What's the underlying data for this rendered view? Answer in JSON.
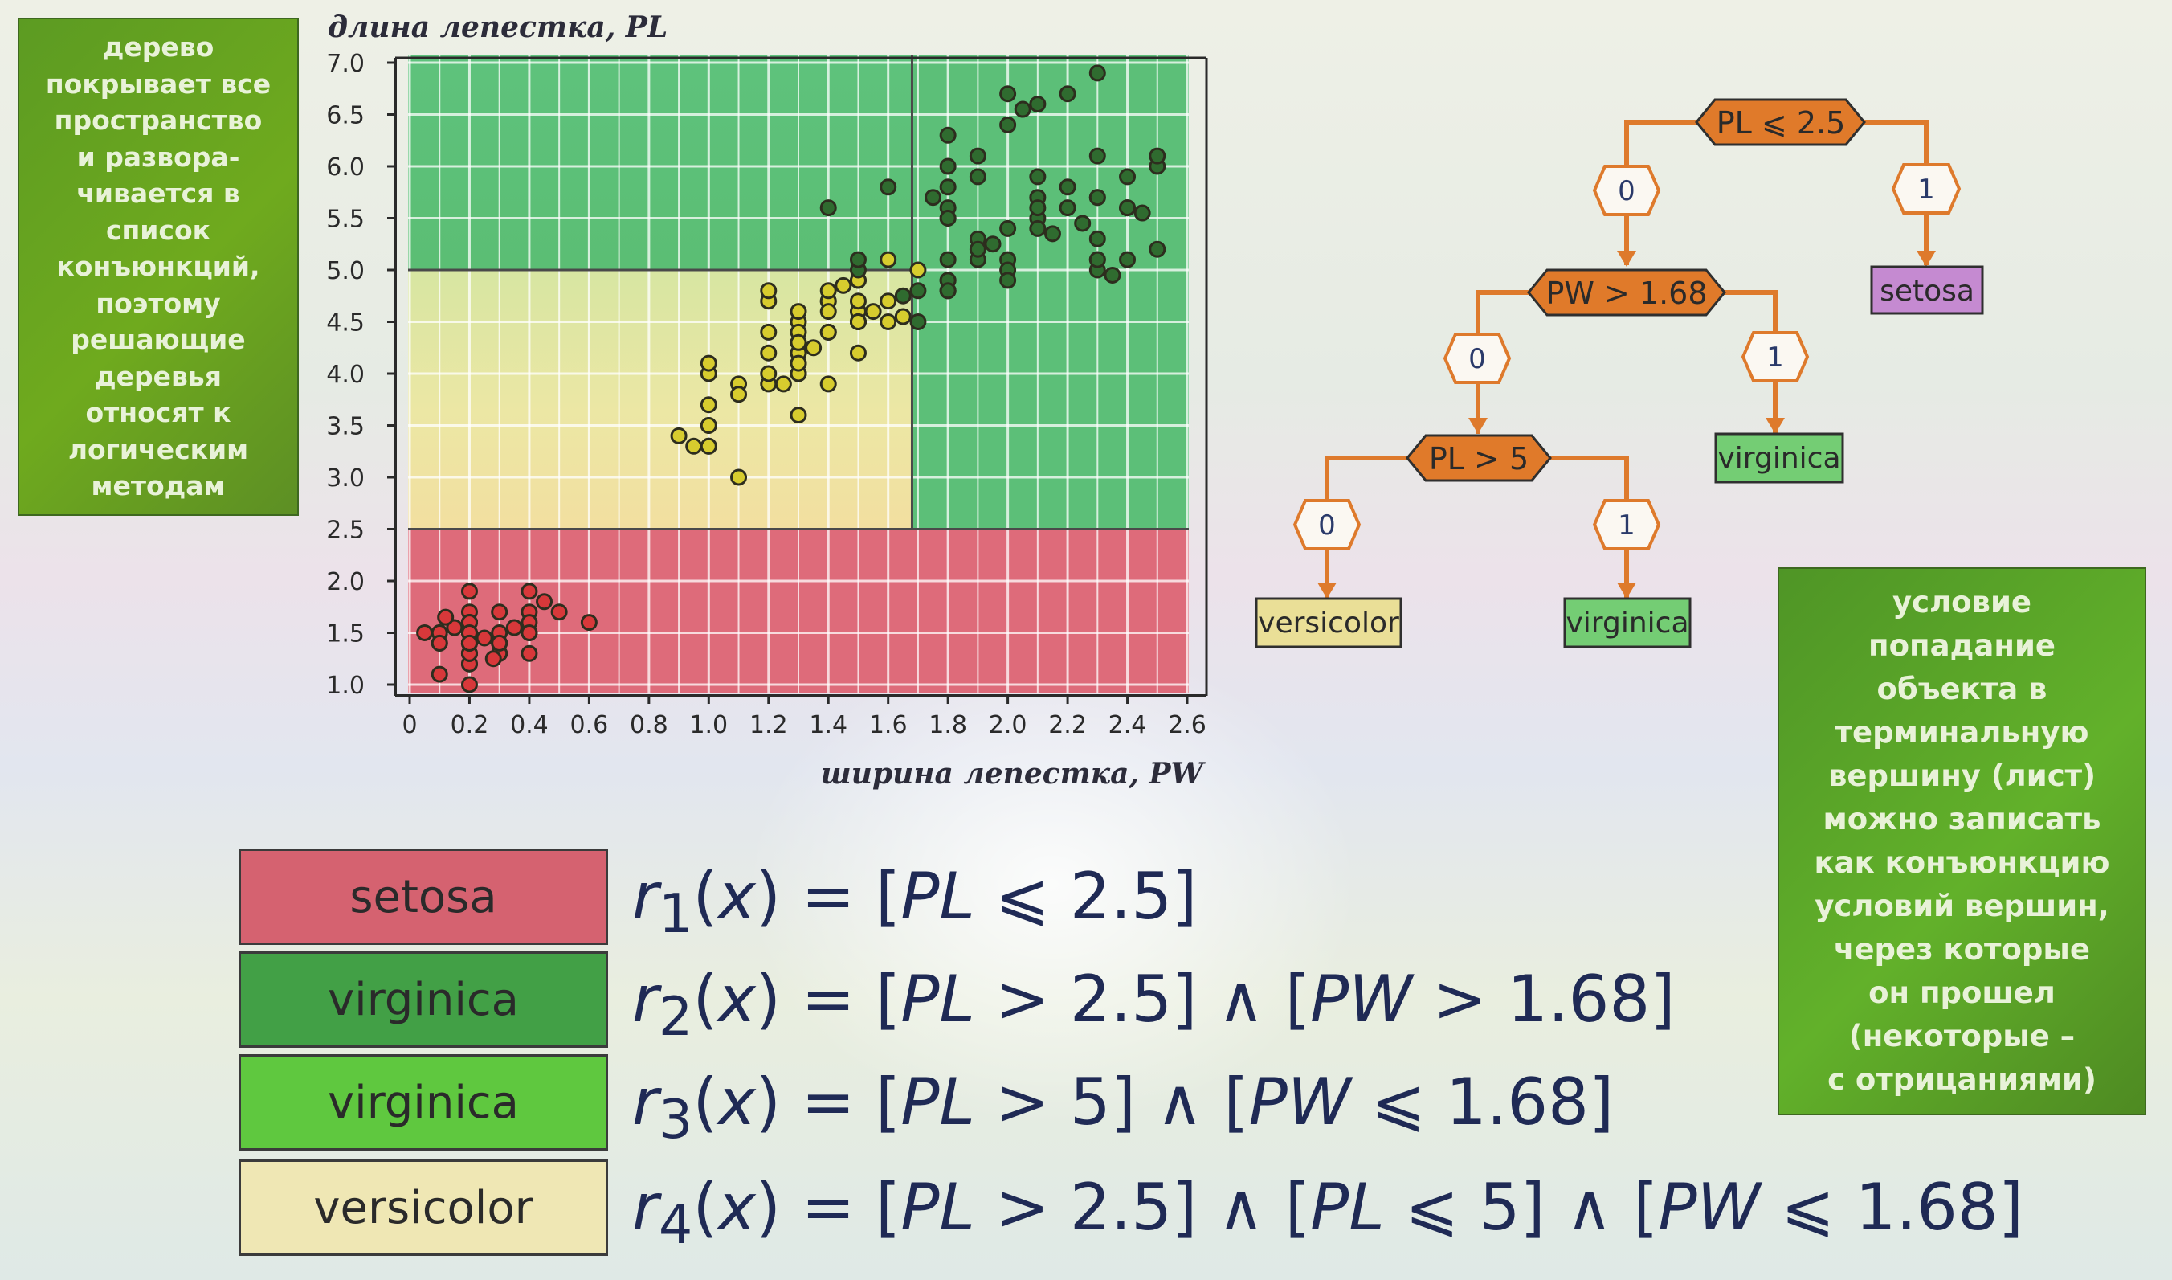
{
  "notes": {
    "left": "дерево\nпокрывает все\nпространство\nи развора-\nчивается в\nсписок\nконъюнкций,\nпоэтому\nрешающие\nдеревья\nотносят к\nлогическим\nметодам",
    "right": "условие\nпопадание\nобъекта в\nтерминальную\nвершину (лист)\nможно записать\nкак конъюнкцию\nусловий вершин,\nчерез которые\nон прошел\n(некоторые –\nс отрицаниями)"
  },
  "chart_data": {
    "type": "scatter",
    "ylabel": "длина лепестка, PL",
    "xlabel": "ширина лепестка, PW",
    "xlim": [
      0,
      2.6
    ],
    "ylim": [
      1.0,
      7.0
    ],
    "xticks": [
      "0",
      "0.2",
      "0.4",
      "0.6",
      "0.8",
      "1.0",
      "1.2",
      "1.4",
      "1.6",
      "1.8",
      "2.0",
      "2.2",
      "2.4",
      "2.6"
    ],
    "yticks": [
      "1.0",
      "1.5",
      "2.0",
      "2.5",
      "3.0",
      "3.5",
      "4.0",
      "4.5",
      "5.0",
      "5.5",
      "6.0",
      "6.5",
      "7.0"
    ],
    "grid": true,
    "region_boundaries": {
      "PL_split": 2.5,
      "PL_split_2": 5.0,
      "PW_split": 1.68
    },
    "region_colors": {
      "setosa": "#de6b7a",
      "virginica": "#5cbf78",
      "versicolor": "#e8e49a"
    },
    "series": [
      {
        "name": "setosa",
        "color": "#d8383a",
        "points": [
          [
            0.2,
            1.4
          ],
          [
            0.2,
            1.4
          ],
          [
            0.2,
            1.3
          ],
          [
            0.2,
            1.5
          ],
          [
            0.2,
            1.4
          ],
          [
            0.4,
            1.7
          ],
          [
            0.3,
            1.4
          ],
          [
            0.2,
            1.5
          ],
          [
            0.2,
            1.4
          ],
          [
            0.1,
            1.5
          ],
          [
            0.2,
            1.5
          ],
          [
            0.2,
            1.6
          ],
          [
            0.1,
            1.4
          ],
          [
            0.1,
            1.1
          ],
          [
            0.2,
            1.2
          ],
          [
            0.4,
            1.5
          ],
          [
            0.4,
            1.3
          ],
          [
            0.3,
            1.4
          ],
          [
            0.3,
            1.7
          ],
          [
            0.3,
            1.5
          ],
          [
            0.2,
            1.7
          ],
          [
            0.4,
            1.5
          ],
          [
            0.2,
            1.0
          ],
          [
            0.5,
            1.7
          ],
          [
            0.2,
            1.9
          ],
          [
            0.2,
            1.6
          ],
          [
            0.4,
            1.6
          ],
          [
            0.2,
            1.5
          ],
          [
            0.2,
            1.4
          ],
          [
            0.2,
            1.6
          ],
          [
            0.2,
            1.6
          ],
          [
            0.4,
            1.5
          ],
          [
            0.1,
            1.5
          ],
          [
            0.2,
            1.4
          ],
          [
            0.2,
            1.5
          ],
          [
            0.2,
            1.2
          ],
          [
            0.2,
            1.3
          ],
          [
            0.1,
            1.4
          ],
          [
            0.2,
            1.3
          ],
          [
            0.2,
            1.5
          ],
          [
            0.3,
            1.3
          ],
          [
            0.3,
            1.3
          ],
          [
            0.2,
            1.3
          ],
          [
            0.6,
            1.6
          ],
          [
            0.4,
            1.9
          ],
          [
            0.3,
            1.4
          ],
          [
            0.2,
            1.6
          ],
          [
            0.2,
            1.4
          ],
          [
            0.2,
            1.5
          ],
          [
            0.2,
            1.4
          ],
          [
            0.15,
            1.55
          ],
          [
            0.25,
            1.45
          ],
          [
            0.35,
            1.55
          ],
          [
            0.05,
            1.5
          ],
          [
            0.45,
            1.8
          ],
          [
            0.12,
            1.65
          ],
          [
            0.28,
            1.25
          ]
        ]
      },
      {
        "name": "versicolor",
        "color": "#d7cc2e",
        "points": [
          [
            1.4,
            4.7
          ],
          [
            1.5,
            4.5
          ],
          [
            1.5,
            4.9
          ],
          [
            1.3,
            4.0
          ],
          [
            1.5,
            4.6
          ],
          [
            1.3,
            4.5
          ],
          [
            1.6,
            4.7
          ],
          [
            1.0,
            3.3
          ],
          [
            1.3,
            4.6
          ],
          [
            1.4,
            3.9
          ],
          [
            1.0,
            3.5
          ],
          [
            1.5,
            4.2
          ],
          [
            1.0,
            4.0
          ],
          [
            1.4,
            4.7
          ],
          [
            1.3,
            3.6
          ],
          [
            1.4,
            4.4
          ],
          [
            1.5,
            4.5
          ],
          [
            1.0,
            4.1
          ],
          [
            1.5,
            4.5
          ],
          [
            1.1,
            3.9
          ],
          [
            1.8,
            4.8
          ],
          [
            1.3,
            4.0
          ],
          [
            1.5,
            4.9
          ],
          [
            1.2,
            4.7
          ],
          [
            1.3,
            4.3
          ],
          [
            1.4,
            4.4
          ],
          [
            1.4,
            4.8
          ],
          [
            1.7,
            5.0
          ],
          [
            1.5,
            4.5
          ],
          [
            1.0,
            3.5
          ],
          [
            1.1,
            3.8
          ],
          [
            1.0,
            3.7
          ],
          [
            1.2,
            3.9
          ],
          [
            1.6,
            5.1
          ],
          [
            1.5,
            4.5
          ],
          [
            1.6,
            4.5
          ],
          [
            1.5,
            4.7
          ],
          [
            1.3,
            4.4
          ],
          [
            1.3,
            4.1
          ],
          [
            1.3,
            4.0
          ],
          [
            1.2,
            4.4
          ],
          [
            1.4,
            4.6
          ],
          [
            1.2,
            4.0
          ],
          [
            1.0,
            3.3
          ],
          [
            1.3,
            4.2
          ],
          [
            1.2,
            4.2
          ],
          [
            1.3,
            4.2
          ],
          [
            1.3,
            4.3
          ],
          [
            1.1,
            3.0
          ],
          [
            1.3,
            4.1
          ],
          [
            0.9,
            3.4
          ],
          [
            1.2,
            4.8
          ],
          [
            1.45,
            4.85
          ],
          [
            1.55,
            4.6
          ],
          [
            1.65,
            4.55
          ],
          [
            1.35,
            4.25
          ],
          [
            0.95,
            3.3
          ],
          [
            1.25,
            3.9
          ]
        ]
      },
      {
        "name": "virginica",
        "color": "#2f6b2f",
        "points": [
          [
            2.5,
            6.0
          ],
          [
            1.9,
            5.1
          ],
          [
            2.1,
            5.9
          ],
          [
            1.8,
            5.6
          ],
          [
            2.2,
            5.8
          ],
          [
            2.1,
            6.6
          ],
          [
            1.7,
            4.5
          ],
          [
            1.8,
            6.3
          ],
          [
            1.8,
            5.8
          ],
          [
            2.5,
            6.1
          ],
          [
            2.0,
            5.1
          ],
          [
            1.9,
            5.3
          ],
          [
            2.1,
            5.5
          ],
          [
            2.0,
            5.0
          ],
          [
            2.4,
            5.1
          ],
          [
            2.3,
            5.3
          ],
          [
            1.8,
            5.5
          ],
          [
            2.2,
            6.7
          ],
          [
            2.3,
            6.9
          ],
          [
            1.5,
            5.0
          ],
          [
            2.3,
            5.7
          ],
          [
            2.0,
            4.9
          ],
          [
            2.0,
            6.7
          ],
          [
            1.8,
            4.9
          ],
          [
            2.1,
            5.7
          ],
          [
            1.8,
            6.0
          ],
          [
            1.8,
            4.8
          ],
          [
            1.8,
            4.9
          ],
          [
            2.1,
            5.6
          ],
          [
            1.6,
            5.8
          ],
          [
            1.9,
            6.1
          ],
          [
            2.0,
            6.4
          ],
          [
            2.2,
            5.6
          ],
          [
            1.5,
            5.1
          ],
          [
            1.4,
            5.6
          ],
          [
            2.3,
            6.1
          ],
          [
            2.4,
            5.6
          ],
          [
            1.8,
            5.5
          ],
          [
            1.8,
            4.8
          ],
          [
            2.1,
            5.4
          ],
          [
            2.4,
            5.6
          ],
          [
            2.3,
            5.1
          ],
          [
            1.9,
            5.9
          ],
          [
            2.3,
            5.7
          ],
          [
            2.5,
            5.2
          ],
          [
            2.3,
            5.0
          ],
          [
            1.9,
            5.2
          ],
          [
            2.0,
            5.4
          ],
          [
            2.3,
            5.1
          ],
          [
            1.8,
            5.1
          ],
          [
            1.7,
            4.8
          ],
          [
            1.75,
            5.7
          ],
          [
            2.15,
            5.35
          ],
          [
            2.45,
            5.55
          ],
          [
            2.35,
            4.95
          ],
          [
            1.95,
            5.25
          ],
          [
            2.05,
            6.55
          ],
          [
            2.4,
            5.9
          ],
          [
            1.65,
            4.75
          ],
          [
            2.25,
            5.45
          ]
        ]
      }
    ]
  },
  "tree": {
    "root": "PL ⩽ 2.5",
    "node2": "PW > 1.68",
    "node3": "PL > 5",
    "edge_root_0": "0",
    "edge_root_1": "1",
    "edge_n2_0": "0",
    "edge_n2_1": "1",
    "edge_n3_0": "0",
    "edge_n3_1": "1",
    "leaf_setosa": "setosa",
    "leaf_virginica_1": "virginica",
    "leaf_versicolor": "versicolor",
    "leaf_virginica_2": "virginica",
    "colors": {
      "node": "#e07a2a",
      "edge": "#e07a2a",
      "setosa": "#c58ad1",
      "virginica": "#74cd74",
      "versicolor": "#eadf97"
    }
  },
  "rules": [
    {
      "label": "setosa",
      "color": "#d56270",
      "formula_html": "<i>r</i><sub>1</sub>(<i>x</i>) = [<i>PL</i> ⩽ 2.5]"
    },
    {
      "label": "virginica",
      "color": "#42a046",
      "formula_html": "<i>r</i><sub>2</sub>(<i>x</i>) = [<i>PL</i> &gt; 2.5] ∧ [<i>PW</i> &gt; 1.68]"
    },
    {
      "label": "virginica",
      "color": "#5fc83f",
      "formula_html": "<i>r</i><sub>3</sub>(<i>x</i>) = [<i>PL</i> &gt; 5] ∧ [<i>PW</i> ⩽ 1.68]"
    },
    {
      "label": "versicolor",
      "color": "#efe7b4",
      "formula_html": "<i>r</i><sub>4</sub>(<i>x</i>) = [<i>PL</i> &gt; 2.5] ∧ [<i>PL</i> ⩽ 5] ∧ [<i>PW</i> ⩽ 1.68]"
    }
  ]
}
